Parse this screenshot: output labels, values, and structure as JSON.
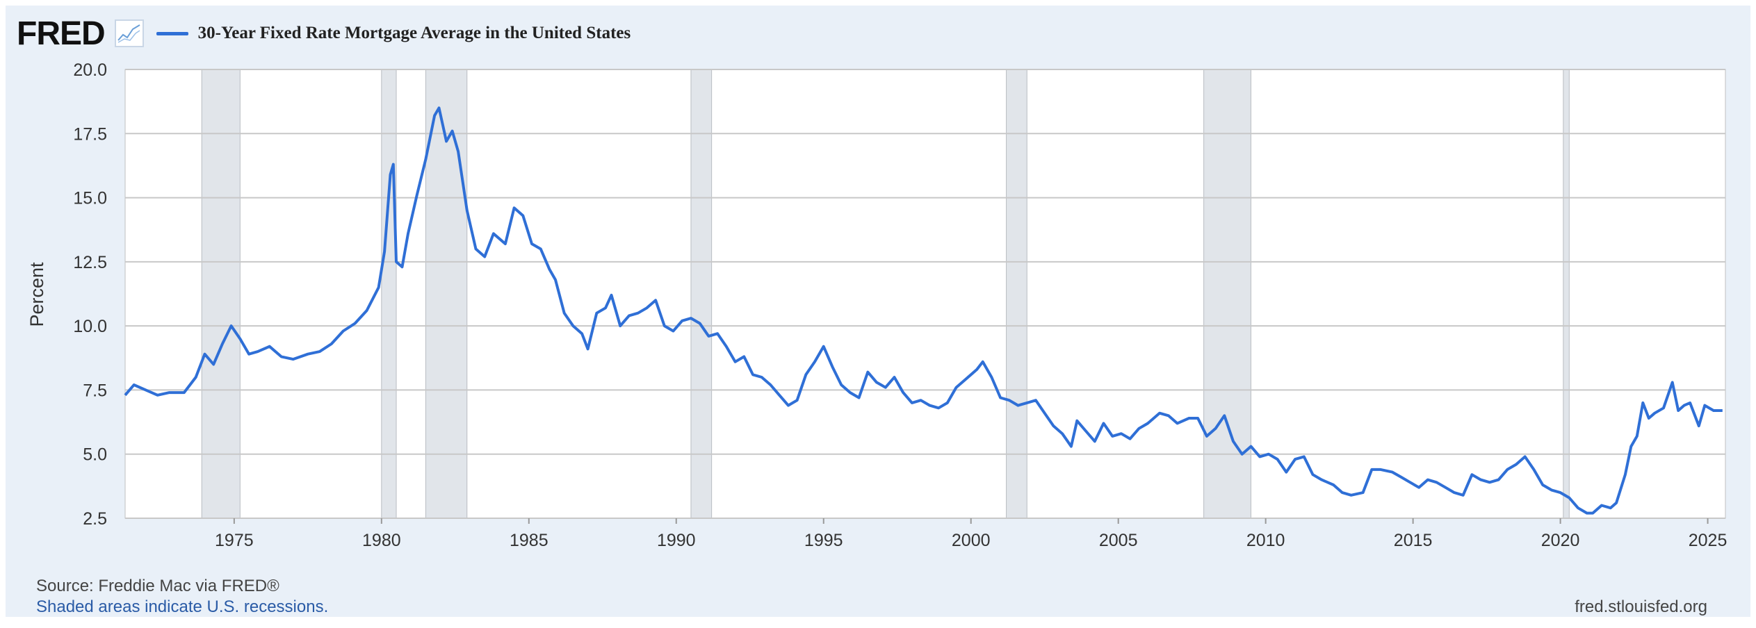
{
  "header": {
    "logo_text": "FRED",
    "series_label": "30-Year Fixed Rate Mortgage Average in the United States"
  },
  "footer": {
    "source": "Source: Freddie Mac via FRED®",
    "shaded_note": "Shaded areas indicate U.S. recessions.",
    "site": "fred.stlouisfed.org"
  },
  "colors": {
    "line": "#2f6fd6",
    "recession": "#e1e5ea",
    "background": "#e9f0f8",
    "plot": "#ffffff",
    "grid": "#c8c8c8"
  },
  "chart_data": {
    "type": "line",
    "title": "",
    "xlabel": "",
    "ylabel": "Percent",
    "ylim": [
      2.5,
      20.0
    ],
    "xlim": [
      1971.3,
      2025.6
    ],
    "yticks": [
      "2.5",
      "5.0",
      "7.5",
      "10.0",
      "12.5",
      "15.0",
      "17.5",
      "20.0"
    ],
    "xticks": [
      "1975",
      "1980",
      "1985",
      "1990",
      "1995",
      "2000",
      "2005",
      "2010",
      "2015",
      "2020",
      "2025"
    ],
    "grid": true,
    "recessions": [
      [
        1973.9,
        1975.2
      ],
      [
        1980.0,
        1980.5
      ],
      [
        1981.5,
        1982.9
      ],
      [
        1990.5,
        1991.2
      ],
      [
        2001.2,
        2001.9
      ],
      [
        2007.9,
        2009.5
      ],
      [
        2020.1,
        2020.3
      ]
    ],
    "series": [
      {
        "name": "30-Year Fixed Rate Mortgage Average in the United States",
        "points": [
          [
            1971.3,
            7.3
          ],
          [
            1971.6,
            7.7
          ],
          [
            1972.0,
            7.5
          ],
          [
            1972.4,
            7.3
          ],
          [
            1972.8,
            7.4
          ],
          [
            1973.3,
            7.4
          ],
          [
            1973.7,
            8.0
          ],
          [
            1974.0,
            8.9
          ],
          [
            1974.3,
            8.5
          ],
          [
            1974.6,
            9.3
          ],
          [
            1974.9,
            10.0
          ],
          [
            1975.2,
            9.5
          ],
          [
            1975.5,
            8.9
          ],
          [
            1975.8,
            9.0
          ],
          [
            1976.2,
            9.2
          ],
          [
            1976.6,
            8.8
          ],
          [
            1977.0,
            8.7
          ],
          [
            1977.5,
            8.9
          ],
          [
            1977.9,
            9.0
          ],
          [
            1978.3,
            9.3
          ],
          [
            1978.7,
            9.8
          ],
          [
            1979.1,
            10.1
          ],
          [
            1979.5,
            10.6
          ],
          [
            1979.9,
            11.5
          ],
          [
            1980.1,
            12.9
          ],
          [
            1980.3,
            15.9
          ],
          [
            1980.4,
            16.3
          ],
          [
            1980.5,
            12.5
          ],
          [
            1980.7,
            12.3
          ],
          [
            1980.9,
            13.6
          ],
          [
            1981.2,
            15.1
          ],
          [
            1981.5,
            16.5
          ],
          [
            1981.8,
            18.2
          ],
          [
            1981.95,
            18.5
          ],
          [
            1982.2,
            17.2
          ],
          [
            1982.4,
            17.6
          ],
          [
            1982.6,
            16.8
          ],
          [
            1982.9,
            14.5
          ],
          [
            1983.2,
            13.0
          ],
          [
            1983.5,
            12.7
          ],
          [
            1983.8,
            13.6
          ],
          [
            1984.2,
            13.2
          ],
          [
            1984.5,
            14.6
          ],
          [
            1984.8,
            14.3
          ],
          [
            1985.1,
            13.2
          ],
          [
            1985.4,
            13.0
          ],
          [
            1985.7,
            12.2
          ],
          [
            1985.9,
            11.8
          ],
          [
            1986.2,
            10.5
          ],
          [
            1986.5,
            10.0
          ],
          [
            1986.8,
            9.7
          ],
          [
            1987.0,
            9.1
          ],
          [
            1987.3,
            10.5
          ],
          [
            1987.6,
            10.7
          ],
          [
            1987.8,
            11.2
          ],
          [
            1988.1,
            10.0
          ],
          [
            1988.4,
            10.4
          ],
          [
            1988.7,
            10.5
          ],
          [
            1989.0,
            10.7
          ],
          [
            1989.3,
            11.0
          ],
          [
            1989.6,
            10.0
          ],
          [
            1989.9,
            9.8
          ],
          [
            1990.2,
            10.2
          ],
          [
            1990.5,
            10.3
          ],
          [
            1990.8,
            10.1
          ],
          [
            1991.1,
            9.6
          ],
          [
            1991.4,
            9.7
          ],
          [
            1991.7,
            9.2
          ],
          [
            1992.0,
            8.6
          ],
          [
            1992.3,
            8.8
          ],
          [
            1992.6,
            8.1
          ],
          [
            1992.9,
            8.0
          ],
          [
            1993.2,
            7.7
          ],
          [
            1993.5,
            7.3
          ],
          [
            1993.8,
            6.9
          ],
          [
            1994.1,
            7.1
          ],
          [
            1994.4,
            8.1
          ],
          [
            1994.7,
            8.6
          ],
          [
            1995.0,
            9.2
          ],
          [
            1995.3,
            8.4
          ],
          [
            1995.6,
            7.7
          ],
          [
            1995.9,
            7.4
          ],
          [
            1996.2,
            7.2
          ],
          [
            1996.5,
            8.2
          ],
          [
            1996.8,
            7.8
          ],
          [
            1997.1,
            7.6
          ],
          [
            1997.4,
            8.0
          ],
          [
            1997.7,
            7.4
          ],
          [
            1998.0,
            7.0
          ],
          [
            1998.3,
            7.1
          ],
          [
            1998.6,
            6.9
          ],
          [
            1998.9,
            6.8
          ],
          [
            1999.2,
            7.0
          ],
          [
            1999.5,
            7.6
          ],
          [
            1999.8,
            7.9
          ],
          [
            2000.2,
            8.3
          ],
          [
            2000.4,
            8.6
          ],
          [
            2000.7,
            8.0
          ],
          [
            2001.0,
            7.2
          ],
          [
            2001.3,
            7.1
          ],
          [
            2001.6,
            6.9
          ],
          [
            2001.9,
            7.0
          ],
          [
            2002.2,
            7.1
          ],
          [
            2002.5,
            6.6
          ],
          [
            2002.8,
            6.1
          ],
          [
            2003.1,
            5.8
          ],
          [
            2003.4,
            5.3
          ],
          [
            2003.6,
            6.3
          ],
          [
            2003.9,
            5.9
          ],
          [
            2004.2,
            5.5
          ],
          [
            2004.5,
            6.2
          ],
          [
            2004.8,
            5.7
          ],
          [
            2005.1,
            5.8
          ],
          [
            2005.4,
            5.6
          ],
          [
            2005.7,
            6.0
          ],
          [
            2006.0,
            6.2
          ],
          [
            2006.4,
            6.6
          ],
          [
            2006.7,
            6.5
          ],
          [
            2007.0,
            6.2
          ],
          [
            2007.4,
            6.4
          ],
          [
            2007.7,
            6.4
          ],
          [
            2008.0,
            5.7
          ],
          [
            2008.3,
            6.0
          ],
          [
            2008.6,
            6.5
          ],
          [
            2008.9,
            5.5
          ],
          [
            2009.2,
            5.0
          ],
          [
            2009.5,
            5.3
          ],
          [
            2009.8,
            4.9
          ],
          [
            2010.1,
            5.0
          ],
          [
            2010.4,
            4.8
          ],
          [
            2010.7,
            4.3
          ],
          [
            2011.0,
            4.8
          ],
          [
            2011.3,
            4.9
          ],
          [
            2011.6,
            4.2
          ],
          [
            2011.9,
            4.0
          ],
          [
            2012.3,
            3.8
          ],
          [
            2012.6,
            3.5
          ],
          [
            2012.9,
            3.4
          ],
          [
            2013.3,
            3.5
          ],
          [
            2013.6,
            4.4
          ],
          [
            2013.9,
            4.4
          ],
          [
            2014.3,
            4.3
          ],
          [
            2014.6,
            4.1
          ],
          [
            2014.9,
            3.9
          ],
          [
            2015.2,
            3.7
          ],
          [
            2015.5,
            4.0
          ],
          [
            2015.8,
            3.9
          ],
          [
            2016.1,
            3.7
          ],
          [
            2016.4,
            3.5
          ],
          [
            2016.7,
            3.4
          ],
          [
            2017.0,
            4.2
          ],
          [
            2017.3,
            4.0
          ],
          [
            2017.6,
            3.9
          ],
          [
            2017.9,
            4.0
          ],
          [
            2018.2,
            4.4
          ],
          [
            2018.5,
            4.6
          ],
          [
            2018.8,
            4.9
          ],
          [
            2019.1,
            4.4
          ],
          [
            2019.4,
            3.8
          ],
          [
            2019.7,
            3.6
          ],
          [
            2020.0,
            3.5
          ],
          [
            2020.3,
            3.3
          ],
          [
            2020.6,
            2.9
          ],
          [
            2020.9,
            2.7
          ],
          [
            2021.1,
            2.7
          ],
          [
            2021.4,
            3.0
          ],
          [
            2021.7,
            2.9
          ],
          [
            2021.9,
            3.1
          ],
          [
            2022.2,
            4.2
          ],
          [
            2022.4,
            5.3
          ],
          [
            2022.6,
            5.7
          ],
          [
            2022.8,
            7.0
          ],
          [
            2023.0,
            6.4
          ],
          [
            2023.2,
            6.6
          ],
          [
            2023.5,
            6.8
          ],
          [
            2023.8,
            7.8
          ],
          [
            2024.0,
            6.7
          ],
          [
            2024.2,
            6.9
          ],
          [
            2024.4,
            7.0
          ],
          [
            2024.7,
            6.1
          ],
          [
            2024.9,
            6.9
          ],
          [
            2025.2,
            6.7
          ],
          [
            2025.5,
            6.7
          ]
        ]
      }
    ]
  }
}
